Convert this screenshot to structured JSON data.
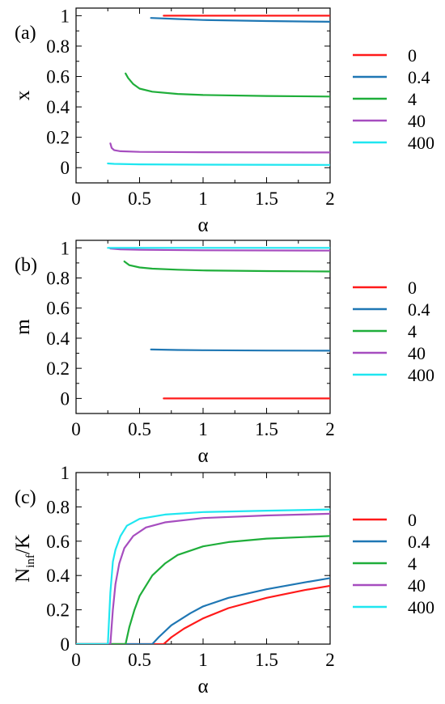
{
  "legend_title": "",
  "colors": {
    "0": "#ff1a1a",
    "0.4": "#1f77b4",
    "4": "#1fae3a",
    "40": "#a64dbf",
    "400": "#1fe6f0"
  },
  "chart_data": [
    {
      "panel_label": "(a)",
      "type": "line",
      "xlabel": "α",
      "ylabel": "x",
      "xlim": [
        0,
        2
      ],
      "ylim": [
        -0.1,
        1.05
      ],
      "xticks": [
        "0",
        "0.5",
        "1",
        "1.5",
        "2"
      ],
      "yticks": [
        "0",
        "0.2",
        "0.4",
        "0.6",
        "0.8",
        "1"
      ],
      "legend": "right",
      "series": [
        {
          "name": "0",
          "x": [
            0.69,
            1.0,
            1.5,
            2.0
          ],
          "y": [
            1.0,
            1.0,
            1.0,
            1.0
          ]
        },
        {
          "name": "0.4",
          "x": [
            0.59,
            0.8,
            1.0,
            1.5,
            2.0
          ],
          "y": [
            0.985,
            0.978,
            0.972,
            0.965,
            0.96
          ]
        },
        {
          "name": "4",
          "x": [
            0.39,
            0.41,
            0.45,
            0.5,
            0.6,
            0.8,
            1.0,
            1.5,
            2.0
          ],
          "y": [
            0.62,
            0.59,
            0.55,
            0.52,
            0.5,
            0.485,
            0.478,
            0.472,
            0.468
          ]
        },
        {
          "name": "40",
          "x": [
            0.27,
            0.28,
            0.3,
            0.35,
            0.5,
            1.0,
            2.0
          ],
          "y": [
            0.16,
            0.13,
            0.115,
            0.108,
            0.104,
            0.102,
            0.1
          ]
        },
        {
          "name": "400",
          "x": [
            0.25,
            0.3,
            0.5,
            1.0,
            2.0
          ],
          "y": [
            0.028,
            0.025,
            0.022,
            0.02,
            0.018
          ]
        }
      ]
    },
    {
      "panel_label": "(b)",
      "type": "line",
      "xlabel": "α",
      "ylabel": "m",
      "xlim": [
        0,
        2
      ],
      "ylim": [
        -0.1,
        1.05
      ],
      "xticks": [
        "0",
        "0.5",
        "1",
        "1.5",
        "2"
      ],
      "yticks": [
        "0",
        "0.2",
        "0.4",
        "0.6",
        "0.8",
        "1"
      ],
      "legend": "right",
      "series": [
        {
          "name": "0",
          "x": [
            0.69,
            2.0
          ],
          "y": [
            0.0,
            0.0
          ]
        },
        {
          "name": "0.4",
          "x": [
            0.59,
            0.8,
            1.0,
            1.5,
            2.0
          ],
          "y": [
            0.325,
            0.322,
            0.32,
            0.318,
            0.317
          ]
        },
        {
          "name": "4",
          "x": [
            0.38,
            0.42,
            0.5,
            0.6,
            0.8,
            1.0,
            1.5,
            2.0
          ],
          "y": [
            0.91,
            0.885,
            0.87,
            0.862,
            0.855,
            0.85,
            0.846,
            0.843
          ]
        },
        {
          "name": "40",
          "x": [
            0.27,
            0.35,
            0.5,
            1.0,
            2.0
          ],
          "y": [
            0.995,
            0.99,
            0.987,
            0.984,
            0.982
          ]
        },
        {
          "name": "400",
          "x": [
            0.25,
            0.5,
            1.0,
            2.0
          ],
          "y": [
            1.0,
            1.0,
            1.0,
            1.0
          ]
        }
      ]
    },
    {
      "panel_label": "(c)",
      "type": "line",
      "xlabel": "α",
      "ylabel_main": "N",
      "ylabel_sub": "inf",
      "ylabel_tail": "/K",
      "xlim": [
        0,
        2
      ],
      "ylim": [
        0,
        1
      ],
      "xticks": [
        "0",
        "0.5",
        "1",
        "1.5",
        "2"
      ],
      "yticks": [
        "0",
        "0.2",
        "0.4",
        "0.6",
        "0.8",
        "1"
      ],
      "legend": "right",
      "series": [
        {
          "name": "0",
          "x": [
            0.0,
            0.69,
            0.75,
            0.85,
            1.0,
            1.2,
            1.5,
            1.8,
            2.0
          ],
          "y": [
            0.0,
            0.0,
            0.04,
            0.09,
            0.15,
            0.21,
            0.27,
            0.315,
            0.34
          ]
        },
        {
          "name": "0.4",
          "x": [
            0.0,
            0.6,
            0.65,
            0.75,
            0.9,
            1.0,
            1.2,
            1.5,
            1.8,
            2.0
          ],
          "y": [
            0.0,
            0.0,
            0.04,
            0.11,
            0.18,
            0.22,
            0.27,
            0.32,
            0.36,
            0.385
          ]
        },
        {
          "name": "4",
          "x": [
            0.0,
            0.39,
            0.42,
            0.46,
            0.5,
            0.6,
            0.7,
            0.8,
            1.0,
            1.2,
            1.5,
            2.0
          ],
          "y": [
            0.0,
            0.0,
            0.1,
            0.2,
            0.28,
            0.4,
            0.47,
            0.52,
            0.57,
            0.595,
            0.615,
            0.63
          ]
        },
        {
          "name": "40",
          "x": [
            0.0,
            0.27,
            0.29,
            0.31,
            0.34,
            0.38,
            0.45,
            0.55,
            0.7,
            1.0,
            1.5,
            2.0
          ],
          "y": [
            0.0,
            0.0,
            0.2,
            0.35,
            0.47,
            0.56,
            0.63,
            0.68,
            0.71,
            0.735,
            0.75,
            0.76
          ]
        },
        {
          "name": "400",
          "x": [
            0.0,
            0.25,
            0.27,
            0.29,
            0.31,
            0.35,
            0.4,
            0.5,
            0.7,
            1.0,
            1.5,
            2.0
          ],
          "y": [
            0.0,
            0.0,
            0.3,
            0.48,
            0.55,
            0.63,
            0.69,
            0.73,
            0.755,
            0.77,
            0.778,
            0.785
          ]
        }
      ]
    }
  ]
}
